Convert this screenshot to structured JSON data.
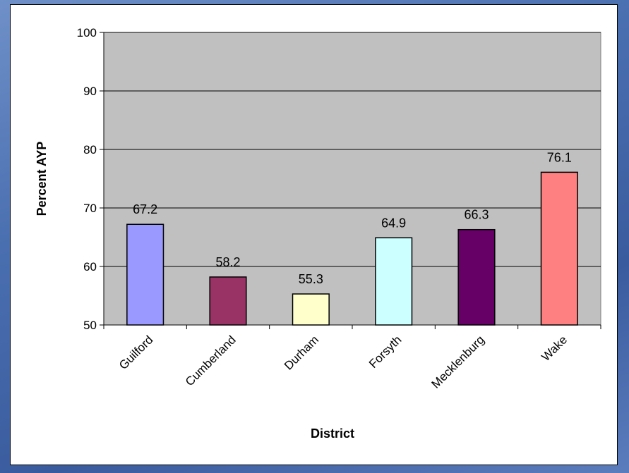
{
  "chart_data": {
    "type": "bar",
    "title": "",
    "xlabel": "District",
    "ylabel": "Percent AYP",
    "ylim": [
      50,
      100
    ],
    "yticks": [
      50,
      60,
      70,
      80,
      90,
      100
    ],
    "grid": true,
    "categories": [
      "Guilford",
      "Cumberland",
      "Durham",
      "Forsyth",
      "Mecklenburg",
      "Wake"
    ],
    "values": [
      67.2,
      58.2,
      55.3,
      64.9,
      66.3,
      76.1
    ],
    "value_labels": [
      "67.2",
      "58.2",
      "55.3",
      "64.9",
      "66.3",
      "76.1"
    ],
    "bar_colors": [
      "#9999ff",
      "#993366",
      "#ffffcc",
      "#ccffff",
      "#660066",
      "#ff8080"
    ],
    "plot_background": "#c0c0c0",
    "page_background": "#4a6fb0"
  }
}
